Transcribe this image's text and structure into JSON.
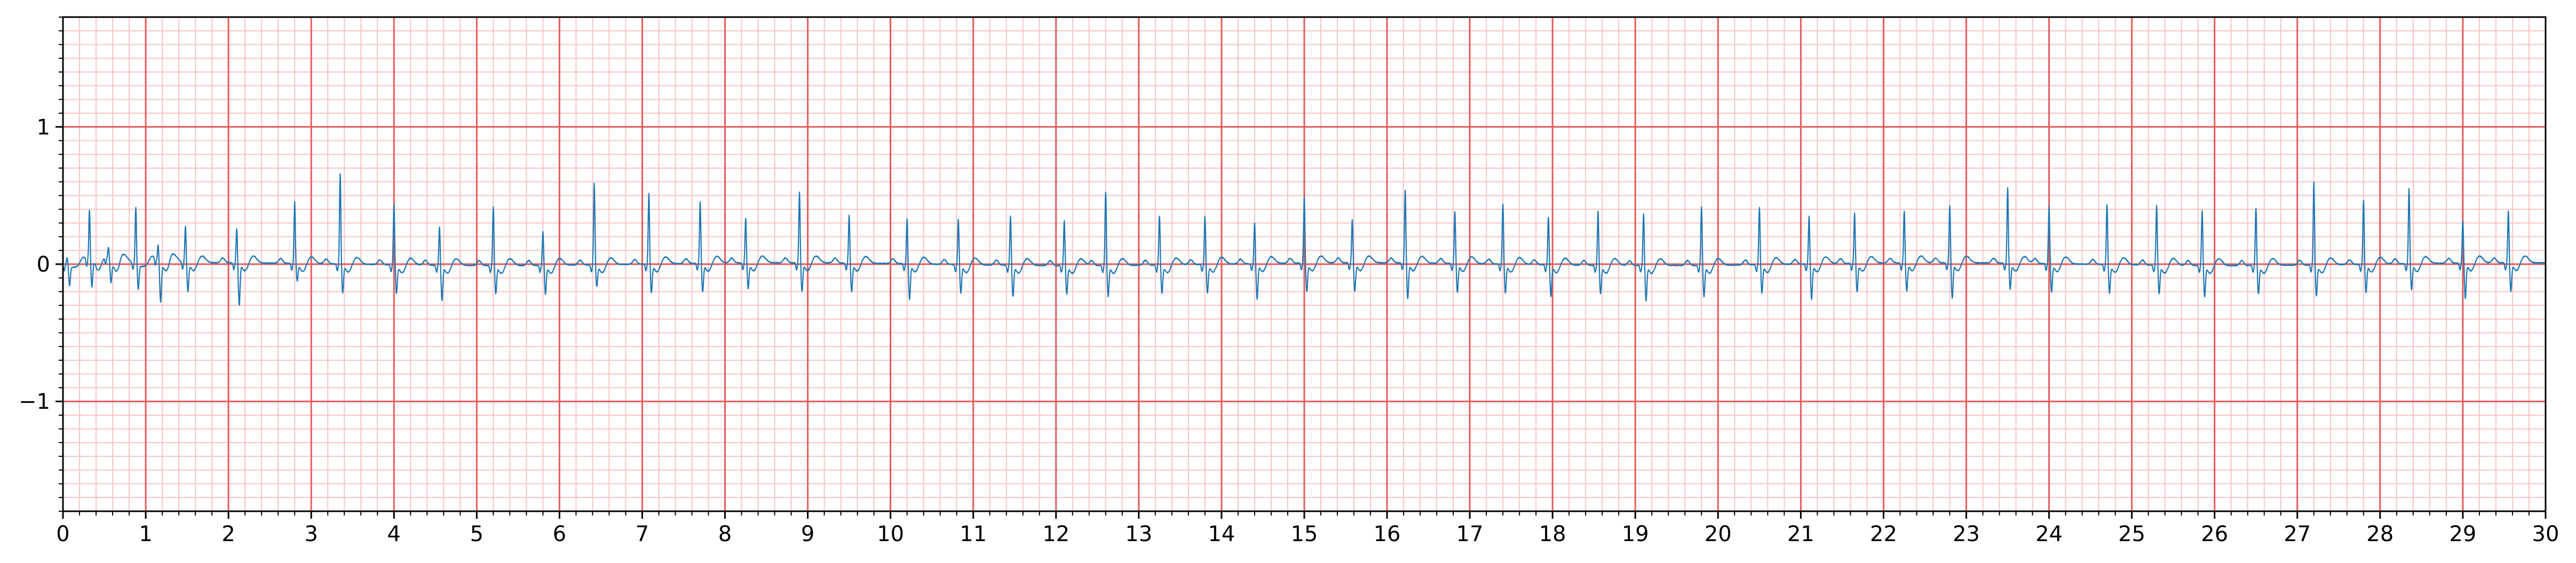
{
  "chart_data": {
    "type": "line",
    "title": "",
    "xlabel": "",
    "ylabel": "",
    "xlim": [
      0,
      30
    ],
    "ylim": [
      -1.8,
      1.8
    ],
    "x_ticks": [
      0,
      1,
      2,
      3,
      4,
      5,
      6,
      7,
      8,
      9,
      10,
      11,
      12,
      13,
      14,
      15,
      16,
      17,
      18,
      19,
      20,
      21,
      22,
      23,
      24,
      25,
      26,
      27,
      28,
      29,
      30
    ],
    "y_ticks": [
      -1,
      0,
      1
    ],
    "y_tick_labels": [
      "−1",
      "0",
      "1"
    ],
    "grid": "ecg-paper",
    "legend": "none",
    "colors": {
      "line": "#1f77b4",
      "major_grid": "#e85a5a",
      "minor_grid": "#f7c4c4",
      "axes": "#000000",
      "background": "#ffffff"
    },
    "beat_times": [
      0.05,
      0.32,
      0.55,
      0.88,
      1.15,
      1.48,
      2.1,
      2.8,
      3.35,
      4.0,
      4.55,
      5.2,
      5.8,
      6.42,
      7.08,
      7.7,
      8.25,
      8.9,
      9.5,
      10.2,
      10.82,
      11.45,
      12.1,
      12.6,
      13.25,
      13.8,
      14.4,
      15.0,
      15.58,
      16.22,
      16.82,
      17.4,
      17.95,
      18.55,
      19.1,
      19.8,
      20.5,
      21.1,
      21.65,
      22.25,
      22.8,
      23.5,
      24.0,
      24.7,
      25.3,
      25.85,
      26.5,
      27.2,
      27.8,
      28.35,
      29.0,
      29.55
    ],
    "beat_r_amplitudes": [
      0.05,
      0.38,
      0.08,
      0.41,
      0.12,
      0.27,
      0.25,
      0.45,
      0.66,
      0.44,
      0.28,
      0.43,
      0.25,
      0.6,
      0.52,
      0.45,
      0.33,
      0.52,
      0.35,
      0.33,
      0.33,
      0.36,
      0.33,
      0.54,
      0.36,
      0.35,
      0.3,
      0.48,
      0.32,
      0.53,
      0.38,
      0.44,
      0.35,
      0.4,
      0.38,
      0.43,
      0.42,
      0.35,
      0.37,
      0.38,
      0.42,
      0.55,
      0.42,
      0.44,
      0.44,
      0.4,
      0.42,
      0.61,
      0.47,
      0.55,
      0.31,
      0.38
    ],
    "beat_s_amplitudes": [
      -0.15,
      -0.18,
      -0.15,
      -0.18,
      -0.28,
      -0.2,
      -0.3,
      -0.12,
      -0.2,
      -0.2,
      -0.25,
      -0.2,
      -0.2,
      -0.15,
      -0.2,
      -0.2,
      -0.18,
      -0.2,
      -0.2,
      -0.25,
      -0.2,
      -0.22,
      -0.2,
      -0.22,
      -0.2,
      -0.2,
      -0.25,
      -0.2,
      -0.2,
      -0.25,
      -0.2,
      -0.2,
      -0.22,
      -0.2,
      -0.25,
      -0.22,
      -0.2,
      -0.25,
      -0.2,
      -0.2,
      -0.25,
      -0.18,
      -0.2,
      -0.2,
      -0.2,
      -0.22,
      -0.2,
      -0.22,
      -0.2,
      -0.18,
      -0.25,
      -0.2
    ]
  }
}
